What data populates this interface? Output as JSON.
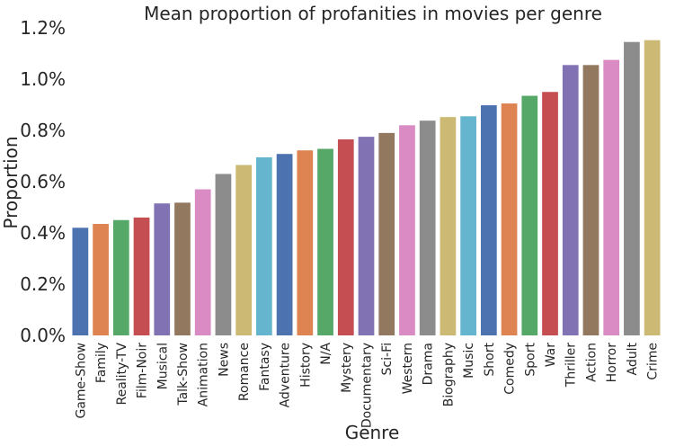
{
  "chart_data": {
    "type": "bar",
    "title": "Mean proportion of profanities in movies per genre",
    "xlabel": "Genre",
    "ylabel": "Proportion",
    "ylim": [
      0,
      1.2
    ],
    "yticks": [
      "0.0%",
      "0.2%",
      "0.4%",
      "0.6%",
      "0.8%",
      "1.0%",
      "1.2%"
    ],
    "grid": false,
    "categories": [
      "Game-Show",
      "Family",
      "Reality-TV",
      "Film-Noir",
      "Musical",
      "Talk-Show",
      "Animation",
      "News",
      "Romance",
      "Fantasy",
      "Adventure",
      "History",
      "N/A",
      "Mystery",
      "Documentary",
      "Sci-Fi",
      "Western",
      "Drama",
      "Biography",
      "Music",
      "Short",
      "Comedy",
      "Sport",
      "War",
      "Thriller",
      "Action",
      "Horror",
      "Adult",
      "Crime"
    ],
    "values": [
      0.42,
      0.435,
      0.45,
      0.46,
      0.515,
      0.518,
      0.57,
      0.63,
      0.665,
      0.695,
      0.708,
      0.722,
      0.728,
      0.765,
      0.775,
      0.79,
      0.82,
      0.838,
      0.852,
      0.855,
      0.898,
      0.905,
      0.935,
      0.95,
      1.055,
      1.055,
      1.075,
      1.145,
      1.152
    ],
    "colors": [
      "#4c72b0",
      "#dd8452",
      "#55a868",
      "#c44e52",
      "#8172b3",
      "#937860",
      "#da8bc3",
      "#8c8c8c",
      "#ccb974",
      "#64b5cd"
    ]
  }
}
